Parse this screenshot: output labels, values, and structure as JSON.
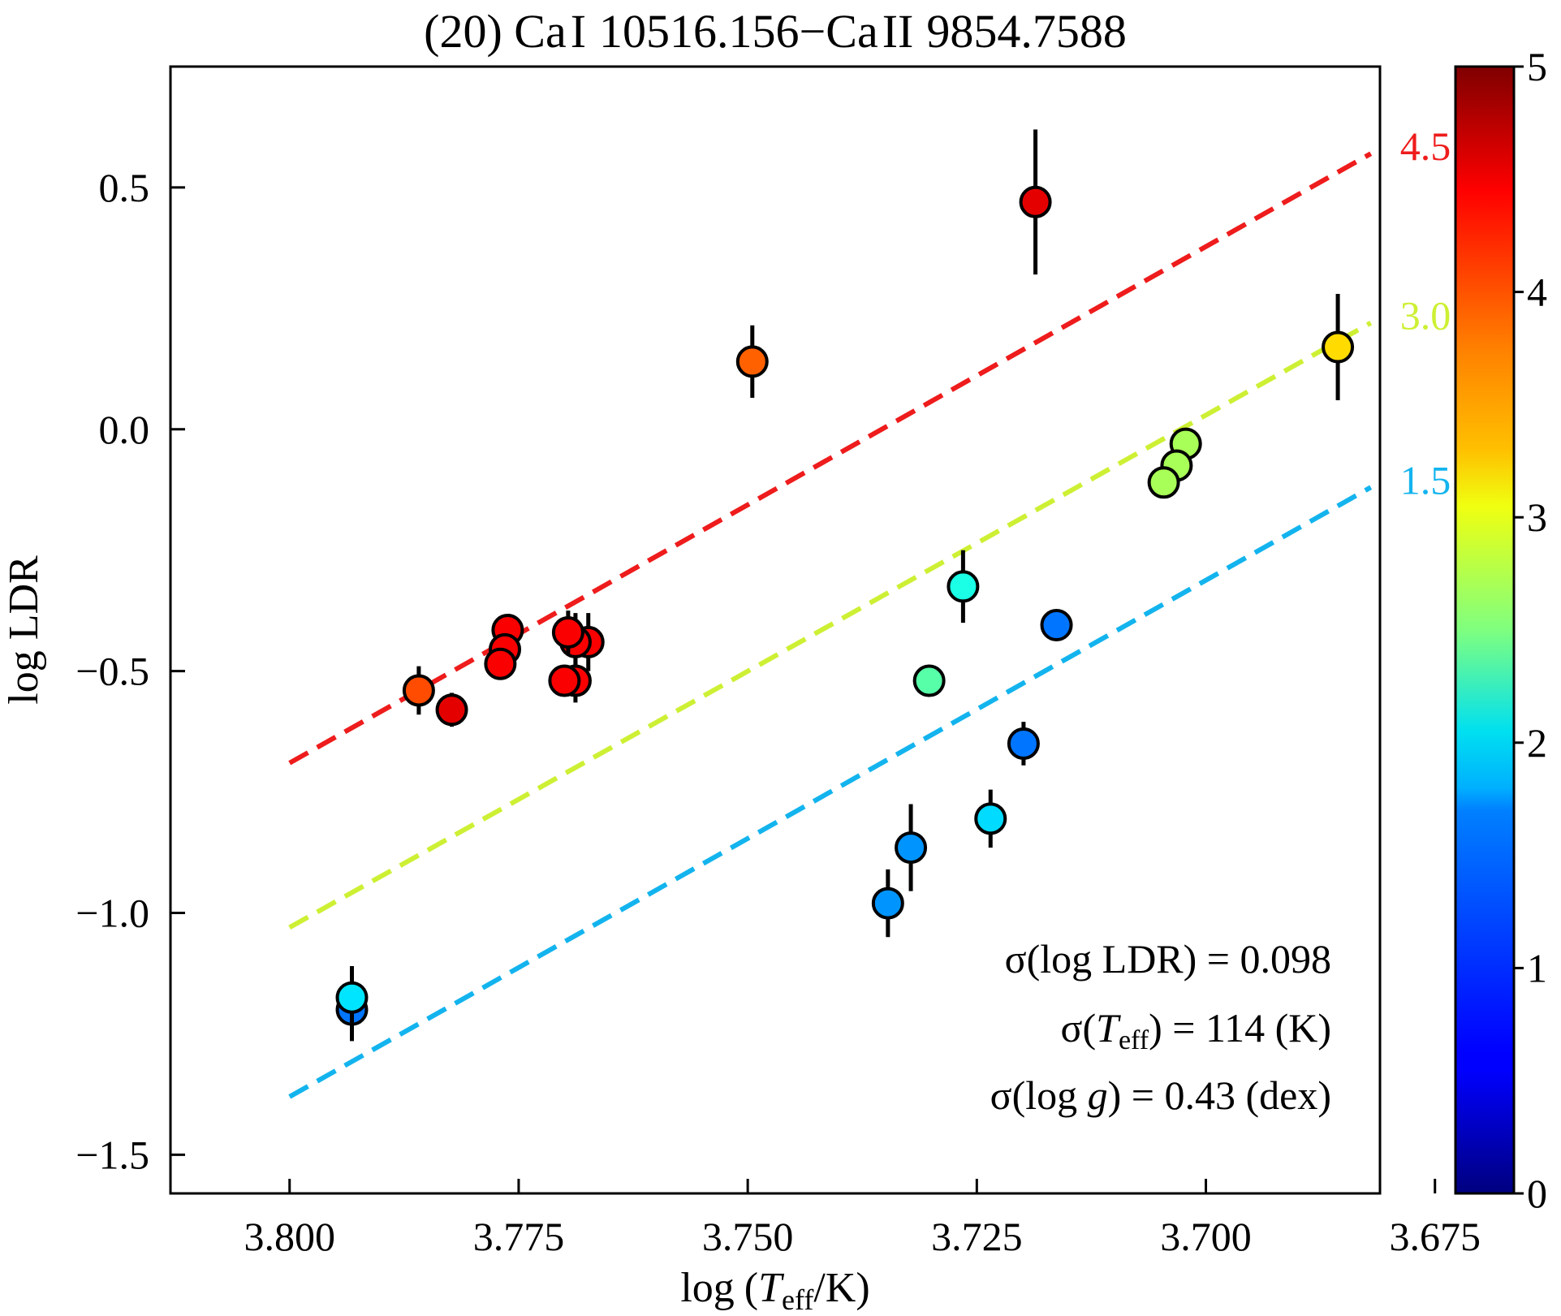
{
  "chart_data": {
    "type": "scatter",
    "title": "(20) Ca I 10516.156−Ca II 9854.7588",
    "xlabel": "log (T_eff/K)",
    "ylabel": "log LDR",
    "xlim": [
      3.813,
      3.681
    ],
    "ylim": [
      -1.58,
      0.75
    ],
    "x_inverted": true,
    "xticks": [
      3.8,
      3.775,
      3.75,
      3.725,
      3.7,
      3.675
    ],
    "xtick_labels": [
      "3.800",
      "3.775",
      "3.750",
      "3.725",
      "3.700",
      "3.675"
    ],
    "yticks": [
      0.5,
      0.0,
      -0.5,
      -1.0,
      -1.5
    ],
    "ytick_labels": [
      "0.5",
      "0.0",
      "−0.5",
      "−1.0",
      "−1.5"
    ],
    "grid": false,
    "colorbar": {
      "colormap": "jet",
      "range": [
        0,
        5
      ],
      "ticks": [
        0,
        1,
        2,
        3,
        4,
        5
      ],
      "tick_labels": [
        "0",
        "1",
        "2",
        "3",
        "4",
        "5"
      ],
      "quantity": "log g"
    },
    "reference_lines": [
      {
        "label": "4.5",
        "logg": 4.5,
        "color": "#ee1c1c",
        "x": [
          3.8,
          3.682
        ],
        "y": [
          -0.69,
          0.57
        ]
      },
      {
        "label": "3.0",
        "logg": 3.0,
        "color": "#cdf034",
        "x": [
          3.8,
          3.682
        ],
        "y": [
          -1.03,
          0.22
        ]
      },
      {
        "label": "1.5",
        "logg": 1.5,
        "color": "#13b4ee",
        "x": [
          3.8,
          3.682
        ],
        "y": [
          -1.38,
          -0.12
        ]
      }
    ],
    "points": [
      {
        "x": 3.7186,
        "y": 0.47,
        "err": 0.15,
        "logg": 4.5
      },
      {
        "x": 3.7495,
        "y": 0.14,
        "err": 0.075,
        "logg": 3.9
      },
      {
        "x": 3.6856,
        "y": 0.17,
        "err": 0.11,
        "logg": 3.3
      },
      {
        "x": 3.7022,
        "y": -0.03,
        "err": 0,
        "logg": 2.7
      },
      {
        "x": 3.7032,
        "y": -0.075,
        "err": 0,
        "logg": 2.7
      },
      {
        "x": 3.7046,
        "y": -0.11,
        "err": 0,
        "logg": 2.7
      },
      {
        "x": 3.7265,
        "y": -0.325,
        "err": 0.075,
        "logg": 2.0
      },
      {
        "x": 3.7163,
        "y": -0.405,
        "err": 0,
        "logg": 1.2
      },
      {
        "x": 3.7302,
        "y": -0.52,
        "err": 0,
        "logg": 2.3
      },
      {
        "x": 3.7199,
        "y": -0.65,
        "err": 0.045,
        "logg": 1.2
      },
      {
        "x": 3.7235,
        "y": -0.805,
        "err": 0.06,
        "logg": 1.7
      },
      {
        "x": 3.7322,
        "y": -0.865,
        "err": 0.09,
        "logg": 1.35
      },
      {
        "x": 3.7347,
        "y": -0.98,
        "err": 0.07,
        "logg": 1.35
      },
      {
        "x": 3.7932,
        "y": -1.2,
        "err": 0.065,
        "logg": 1.2
      },
      {
        "x": 3.7932,
        "y": -1.175,
        "err": 0.065,
        "logg": 1.75
      },
      {
        "x": 3.7762,
        "y": -0.415,
        "err": 0.03,
        "logg": 4.4
      },
      {
        "x": 3.7765,
        "y": -0.455,
        "err": 0.03,
        "logg": 4.4
      },
      {
        "x": 3.777,
        "y": -0.485,
        "err": 0.025,
        "logg": 4.4
      },
      {
        "x": 3.7674,
        "y": -0.44,
        "err": 0.06,
        "logg": 4.4
      },
      {
        "x": 3.7688,
        "y": -0.44,
        "err": 0.06,
        "logg": 4.4
      },
      {
        "x": 3.7696,
        "y": -0.42,
        "err": 0.045,
        "logg": 4.4
      },
      {
        "x": 3.7688,
        "y": -0.52,
        "err": 0.045,
        "logg": 4.4
      },
      {
        "x": 3.77,
        "y": -0.52,
        "err": 0,
        "logg": 4.4
      },
      {
        "x": 3.7823,
        "y": -0.58,
        "err": 0.035,
        "logg": 4.5
      },
      {
        "x": 3.7859,
        "y": -0.54,
        "err": 0.05,
        "logg": 4.0
      }
    ],
    "annotations": [
      "σ(log LDR) = 0.098",
      "σ(T_eff) = 114 (K)",
      "σ(log g) = 0.43 (dex)"
    ]
  },
  "text": {
    "title_prefix": "(20) Ca",
    "title_roman1": "I",
    "title_mid": "10516.156−Ca",
    "title_roman2": "II",
    "title_suffix": "9854.7588",
    "xlabel_log": "log",
    "xlabel_T": "T",
    "xlabel_sub": "eff",
    "xlabel_unit": "/K)",
    "xlabel_open": "(",
    "ylabel": "log LDR",
    "ann1": "σ(log LDR) = 0.098",
    "ann2_a": "σ(",
    "ann2_T": "T",
    "ann2_sub": "eff",
    "ann2_b": ") = 114 (K)",
    "ann3_a": "σ(log ",
    "ann3_g": "g",
    "ann3_b": ") = 0.43 (dex)"
  }
}
